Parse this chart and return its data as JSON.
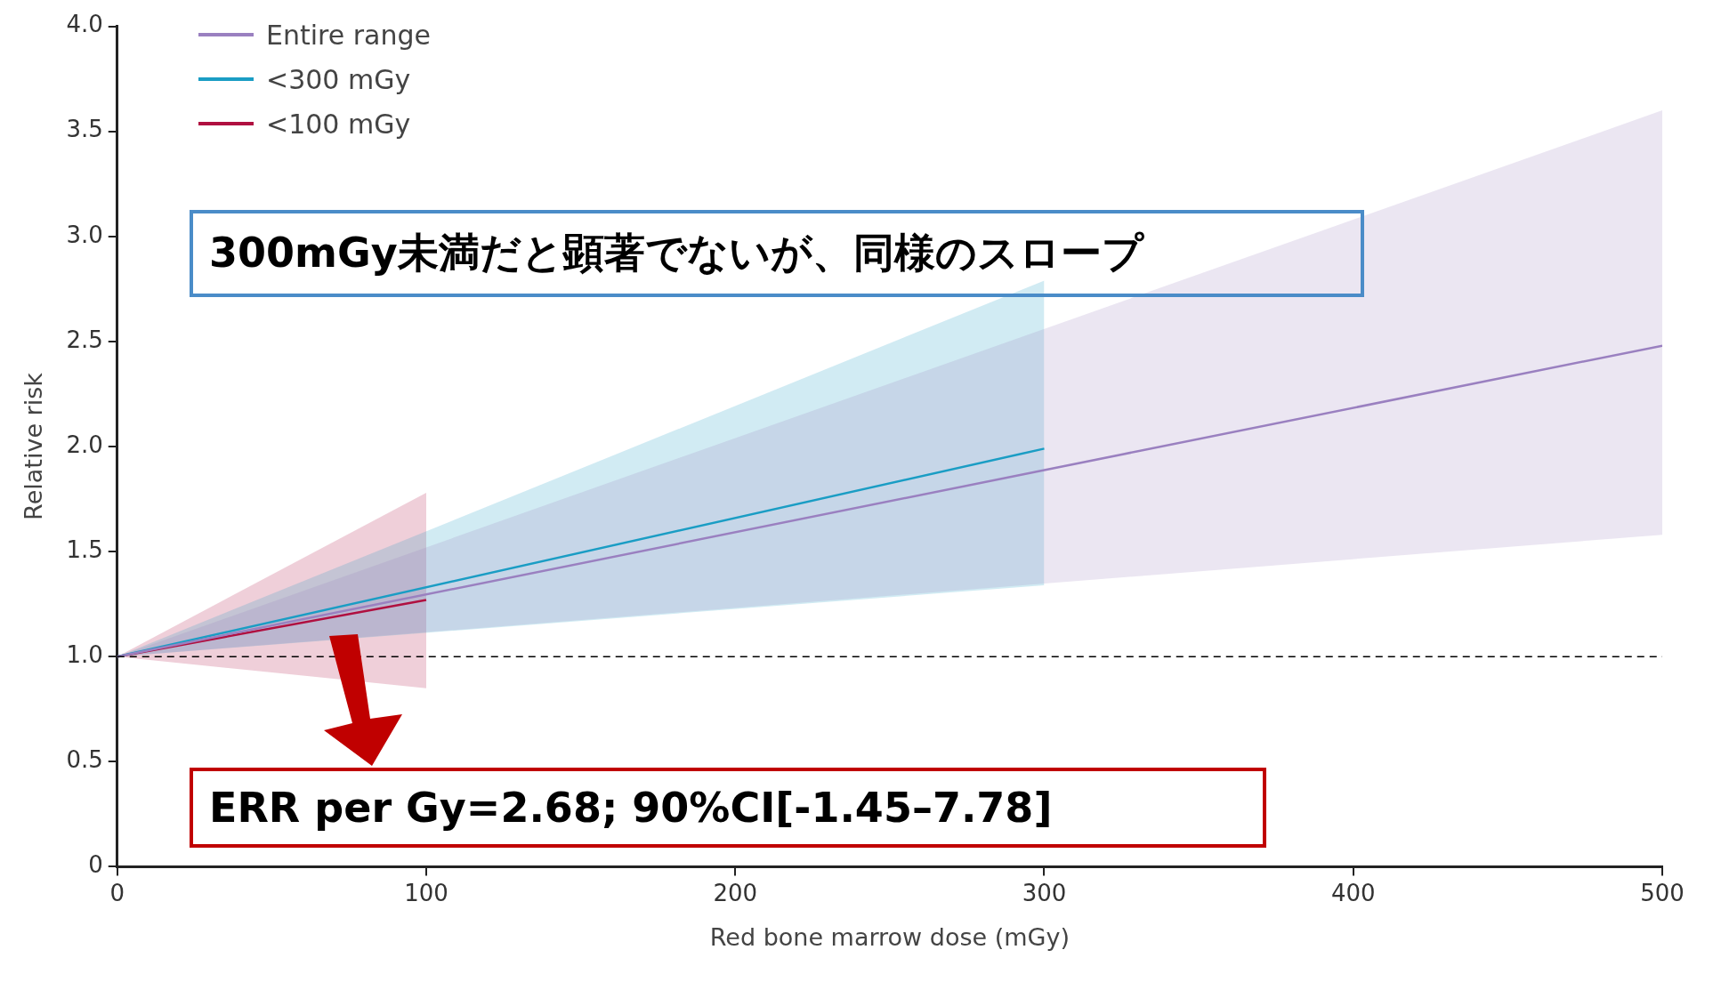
{
  "chart_data": {
    "type": "line",
    "xlabel": "Red bone marrow dose (mGy)",
    "ylabel": "Relative risk",
    "xlim": [
      0,
      500
    ],
    "xticks": [
      0,
      100,
      200,
      300,
      400,
      500
    ],
    "ylim": [
      0,
      4
    ],
    "yticks": [
      0,
      0.5,
      {
        "value": 1,
        "label": "1.0"
      },
      1.5,
      {
        "value": 2,
        "label": "2.0"
      },
      2.5,
      {
        "value": 3,
        "label": "3.0"
      },
      3.5,
      {
        "value": 4,
        "label": "4.0"
      }
    ],
    "series": [
      {
        "name": "Entire range",
        "color": "#9a80c0",
        "x": [
          0,
          500
        ],
        "values": [
          1,
          2.48
        ],
        "lower": [
          1,
          1.58
        ],
        "upper": [
          1,
          3.6
        ]
      },
      {
        "name": "<300 mGy",
        "color": "#1a9dc4",
        "x": [
          0,
          300
        ],
        "values": [
          1,
          1.99
        ],
        "lower": [
          1,
          1.34
        ],
        "upper": [
          1,
          2.79
        ]
      },
      {
        "name": "<100 mGy",
        "color": "#b01040",
        "x": [
          0,
          100
        ],
        "values": [
          1,
          1.27
        ],
        "lower": [
          1,
          0.85
        ],
        "upper": [
          1,
          1.78
        ]
      }
    ],
    "ref_lines": [
      {
        "axis": "y",
        "value": 1,
        "color": "#000000",
        "line_style": "dashed"
      }
    ],
    "annotations": [
      "300mGy未満だと顕著でないが、同様のスロープ",
      "ERR per Gy=2.68; 90%CI[-1.45–7.78]"
    ],
    "legend": "top left",
    "grid": false,
    "marker": "none",
    "line_style": "solid"
  }
}
